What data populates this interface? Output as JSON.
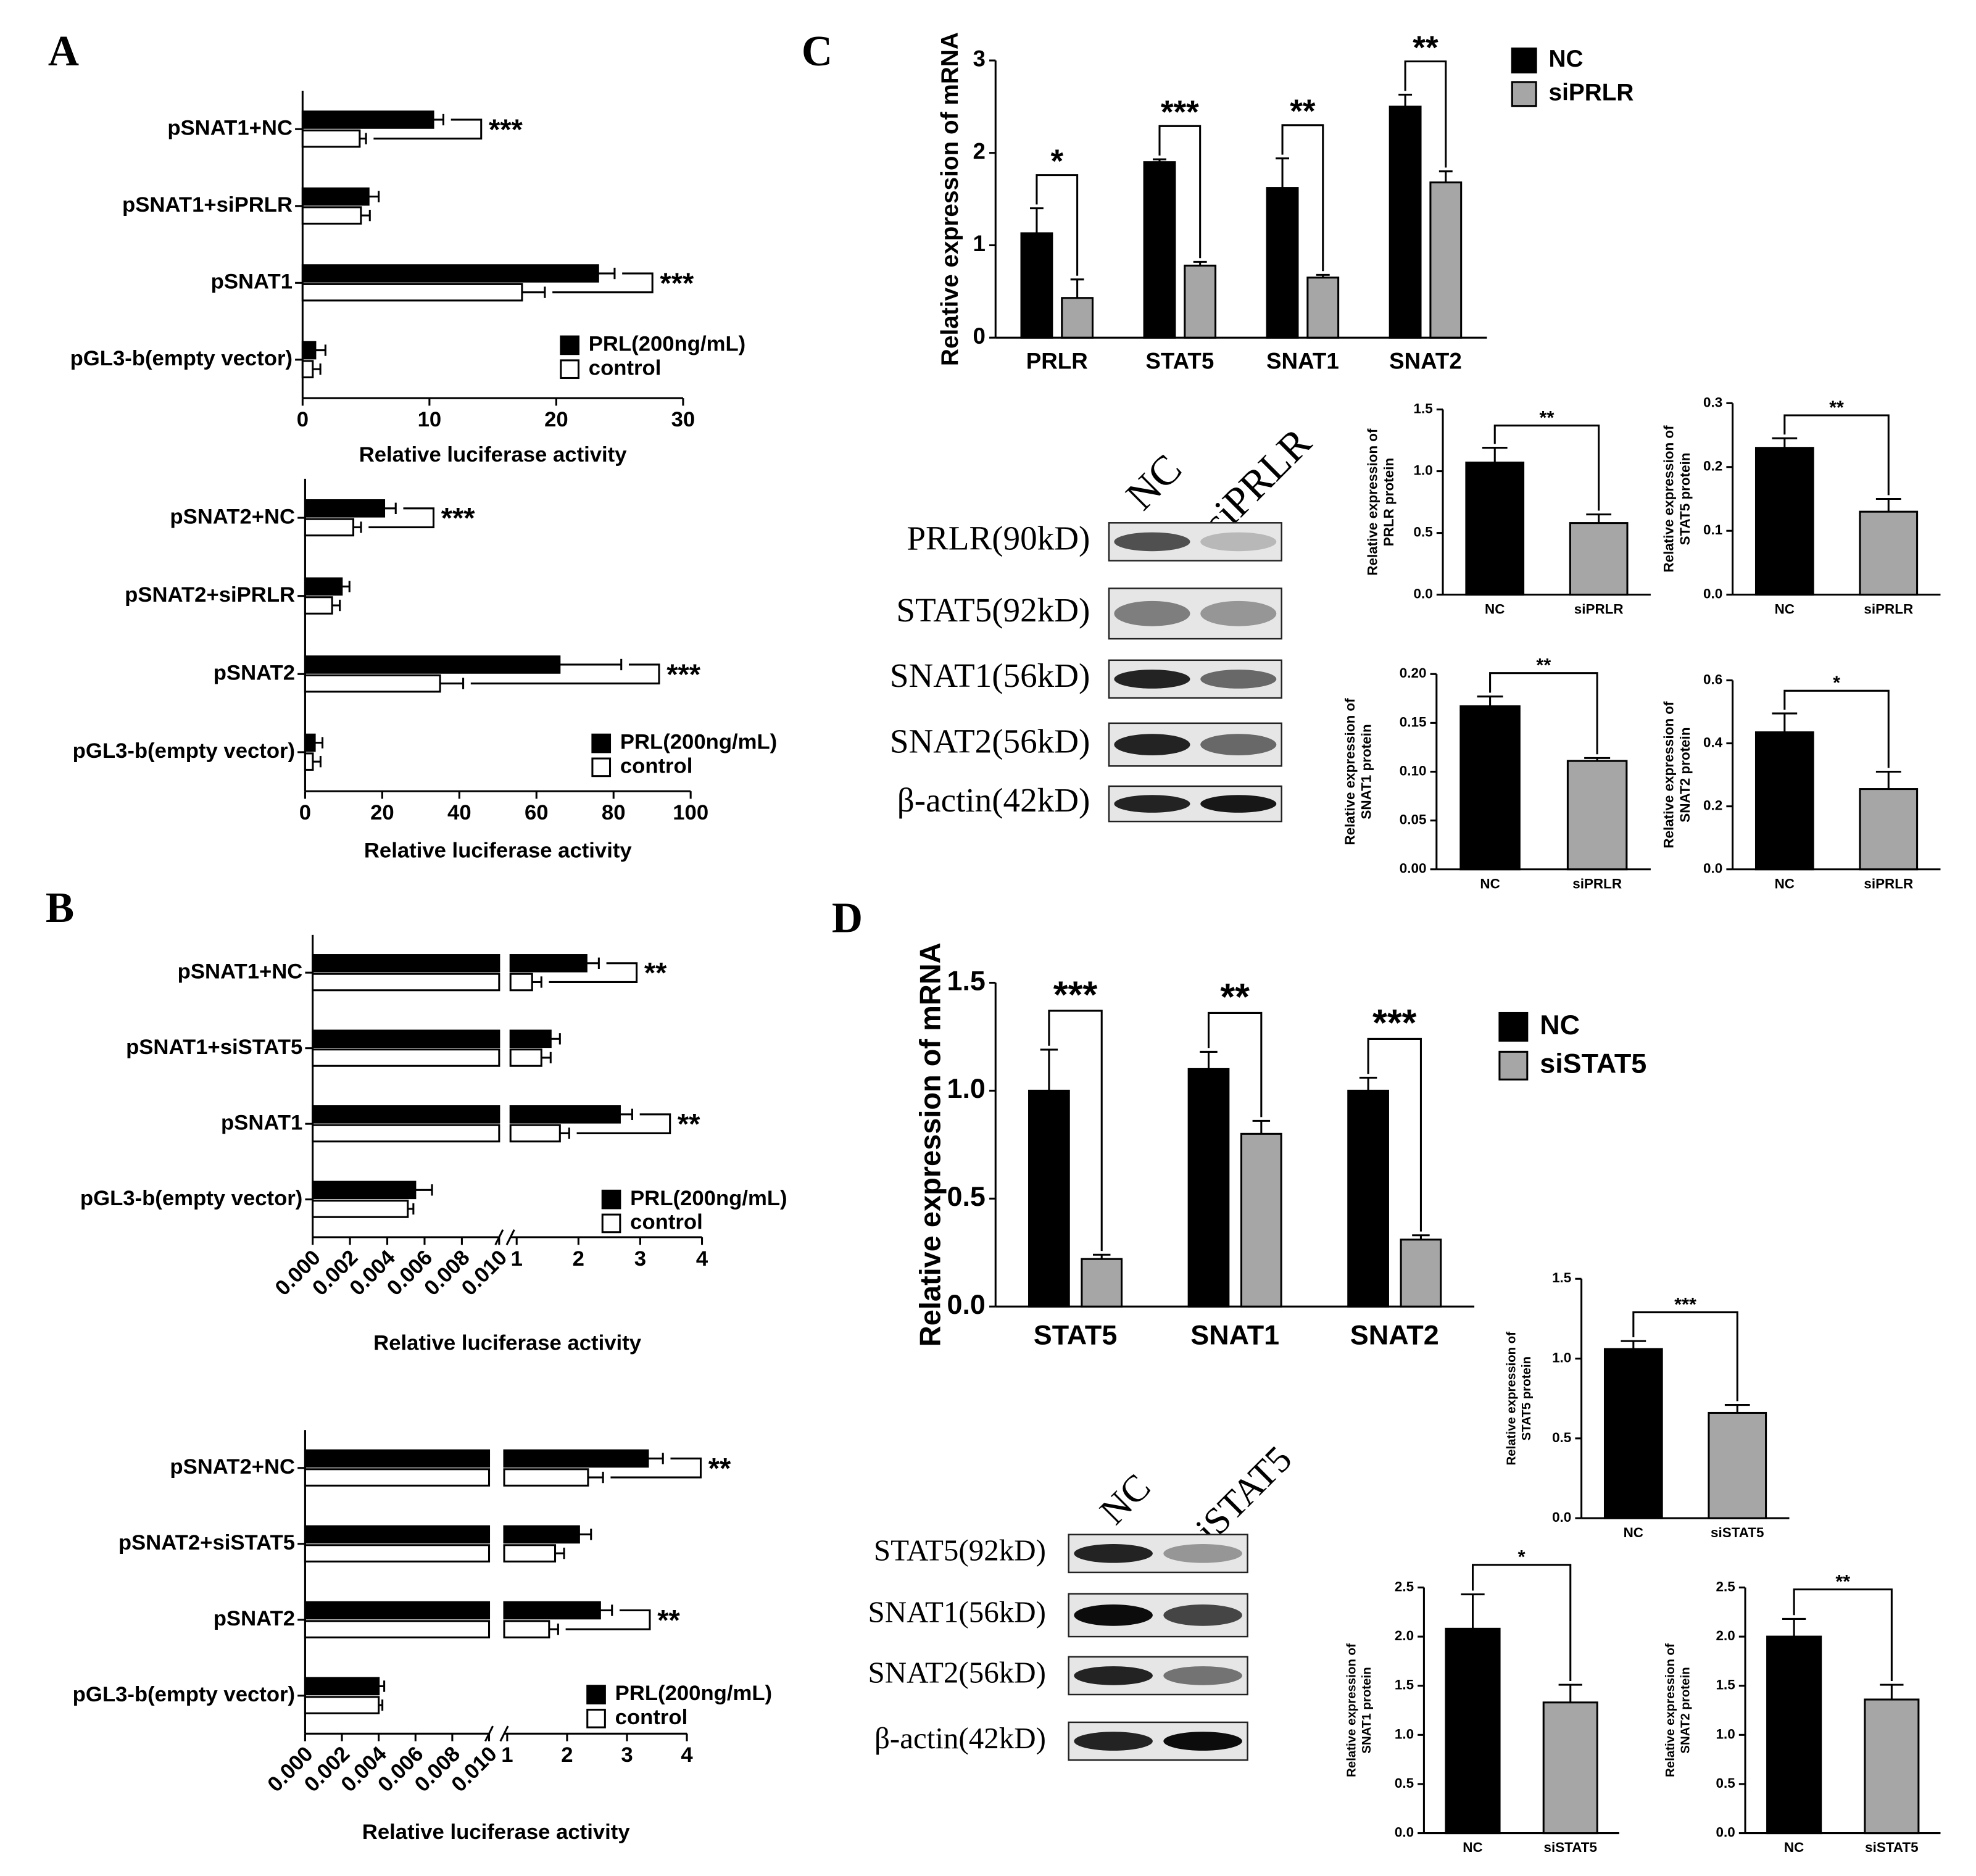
{
  "panels": [
    "A",
    "B",
    "C",
    "D"
  ],
  "chart_data": [
    {
      "type": "hbar",
      "xlabel": "Relative luciferase activity",
      "categories": [
        "pSNAT1+NC",
        "pSNAT1+siPRLR",
        "pSNAT1",
        "pGL3-b(empty vector)"
      ],
      "series": [
        {
          "name": "PRL(200ng/mL)",
          "color": "#000000",
          "values": [
            10.3,
            5.2,
            23.3,
            1.0
          ],
          "errors": [
            0.8,
            0.8,
            1.3,
            0.8
          ]
        },
        {
          "name": "control",
          "color": "#ffffff",
          "values": [
            4.5,
            4.6,
            17.3,
            0.8
          ],
          "errors": [
            0.5,
            0.7,
            1.8,
            0.6
          ]
        }
      ],
      "annotations": [
        "***",
        null,
        "***",
        null
      ],
      "xlim": [
        0,
        30
      ],
      "xticks": [
        0,
        10,
        20,
        30
      ],
      "legend": "lower right"
    },
    {
      "type": "hbar",
      "xlabel": "Relative luciferase activity",
      "categories": [
        "pSNAT2+NC",
        "pSNAT2+siPRLR",
        "pSNAT2",
        "pGL3-b(empty vector)"
      ],
      "series": [
        {
          "name": "PRL(200ng/mL)",
          "color": "#000000",
          "values": [
            20.5,
            9.5,
            66,
            2.5
          ],
          "errors": [
            3,
            2,
            16,
            2
          ]
        },
        {
          "name": "control",
          "color": "#ffffff",
          "values": [
            12.5,
            7,
            35,
            2
          ],
          "errors": [
            2,
            2,
            6,
            2
          ]
        }
      ],
      "annotations": [
        "***",
        null,
        "***",
        null
      ],
      "xlim": [
        0,
        100
      ],
      "xticks": [
        0,
        20,
        40,
        60,
        80,
        100
      ],
      "legend": "lower right"
    },
    {
      "type": "hbar",
      "xlabel": "Relative luciferase activity",
      "categories": [
        "pSNAT1+NC",
        "pSNAT1+siSTAT5",
        "pSNAT1",
        "pGL3-b(empty vector)"
      ],
      "series": [
        {
          "name": "PRL(200ng/mL)",
          "color": "#000000",
          "values": [
            2.13,
            1.55,
            2.67,
            0.0055
          ],
          "errors": [
            0.2,
            0.15,
            0.2,
            0.0009
          ]
        },
        {
          "name": "control",
          "color": "#ffffff",
          "values": [
            1.25,
            1.4,
            1.7,
            0.0051
          ],
          "errors": [
            0.15,
            0.15,
            0.15,
            0.0003
          ]
        }
      ],
      "annotations": [
        "**",
        null,
        "**",
        null
      ],
      "xlim": [
        0,
        4
      ],
      "xbreak": [
        0.01,
        0.9
      ],
      "xticks": [
        {
          "value": 0,
          "label": "0.000"
        },
        {
          "value": 0.002,
          "label": "0.002"
        },
        {
          "value": 0.004,
          "label": "0.004"
        },
        {
          "value": 0.006,
          "label": "0.006"
        },
        {
          "value": 0.008,
          "label": "0.008"
        },
        {
          "value": 0.01,
          "label": "0.010"
        },
        1,
        2,
        3,
        4
      ],
      "legend": "lower right"
    },
    {
      "type": "hbar",
      "xlabel": "Relative luciferase activity",
      "categories": [
        "pSNAT2+NC",
        "pSNAT2+siSTAT5",
        "pSNAT2",
        "pGL3-b(empty vector)"
      ],
      "series": [
        {
          "name": "PRL(200ng/mL)",
          "color": "#000000",
          "values": [
            3.35,
            2.2,
            2.55,
            0.004
          ],
          "errors": [
            0.25,
            0.2,
            0.2,
            0.0003
          ]
        },
        {
          "name": "control",
          "color": "#ffffff",
          "values": [
            2.35,
            1.8,
            1.7,
            0.004
          ],
          "errors": [
            0.25,
            0.15,
            0.15,
            0.0002
          ]
        }
      ],
      "annotations": [
        "**",
        null,
        "**",
        null
      ],
      "xlim": [
        0,
        4
      ],
      "xbreak": [
        0.01,
        0.95
      ],
      "xticks": [
        {
          "value": 0,
          "label": "0.000"
        },
        {
          "value": 0.002,
          "label": "0.002"
        },
        {
          "value": 0.004,
          "label": "0.004"
        },
        {
          "value": 0.006,
          "label": "0.006"
        },
        {
          "value": 0.008,
          "label": "0.008"
        },
        {
          "value": 0.01,
          "label": "0.010"
        },
        1,
        2,
        3,
        4
      ],
      "legend": "lower right"
    },
    {
      "type": "bar",
      "ylabel": [
        "Relative expression of mRNA"
      ],
      "categories": [
        "PRLR",
        "STAT5",
        "SNAT1",
        "SNAT2"
      ],
      "series": [
        {
          "name": "NC",
          "color": "#000000",
          "values": [
            1.13,
            1.9,
            1.62,
            2.5
          ],
          "errors": [
            0.27,
            0.03,
            0.32,
            0.13
          ]
        },
        {
          "name": "siPRLR",
          "color": "#a6a6a6",
          "values": [
            0.43,
            0.78,
            0.65,
            1.68
          ],
          "errors": [
            0.2,
            0.04,
            0.03,
            0.12
          ]
        }
      ],
      "annotations": [
        "*",
        "***",
        "**",
        "**"
      ],
      "ylim": [
        0,
        3
      ],
      "yticks": [
        0,
        1,
        2,
        3
      ],
      "legend": "upper right"
    },
    {
      "type": "bar",
      "ylabel": [
        "Relative expression of",
        "PRLR protein"
      ],
      "categories": [
        "NC",
        "siPRLR"
      ],
      "values": [
        1.07,
        0.58
      ],
      "errors": [
        0.12,
        0.07
      ],
      "colors": [
        "#000000",
        "#a6a6a6"
      ],
      "annotation": "**",
      "ylim": [
        0,
        1.5
      ],
      "yticks": [
        {
          "value": 0,
          "label": "0.0"
        },
        0.5,
        {
          "value": 1,
          "label": "1.0"
        },
        1.5
      ]
    },
    {
      "type": "bar",
      "ylabel": [
        "Relative expression of",
        "STAT5 protein"
      ],
      "categories": [
        "NC",
        "siPRLR"
      ],
      "values": [
        0.23,
        0.13
      ],
      "errors": [
        0.015,
        0.02
      ],
      "colors": [
        "#000000",
        "#a6a6a6"
      ],
      "annotation": "**",
      "ylim": [
        0,
        0.3
      ],
      "yticks": [
        {
          "value": 0,
          "label": "0.0"
        },
        0.1,
        0.2,
        0.3
      ]
    },
    {
      "type": "bar",
      "ylabel": [
        "Relative expression of",
        "SNAT1 protein"
      ],
      "categories": [
        "NC",
        "siPRLR"
      ],
      "values": [
        0.167,
        0.111
      ],
      "errors": [
        0.01,
        0.003
      ],
      "colors": [
        "#000000",
        "#a6a6a6"
      ],
      "annotation": "**",
      "ylim": [
        0,
        0.2
      ],
      "yticks": [
        {
          "value": 0,
          "label": "0.00"
        },
        0.05,
        {
          "value": 0.1,
          "label": "0.10"
        },
        0.15,
        {
          "value": 0.2,
          "label": "0.20"
        }
      ]
    },
    {
      "type": "bar",
      "ylabel": [
        "Relative expression of",
        "SNAT2 protein"
      ],
      "categories": [
        "NC",
        "siPRLR"
      ],
      "values": [
        0.435,
        0.255
      ],
      "errors": [
        0.06,
        0.055
      ],
      "colors": [
        "#000000",
        "#a6a6a6"
      ],
      "annotation": "*",
      "ylim": [
        0,
        0.6
      ],
      "yticks": [
        {
          "value": 0,
          "label": "0.0"
        },
        0.2,
        0.4,
        0.6
      ]
    },
    {
      "type": "bar",
      "ylabel": [
        "Relative expression of mRNA"
      ],
      "categories": [
        "STAT5",
        "SNAT1",
        "SNAT2"
      ],
      "series": [
        {
          "name": "NC",
          "color": "#000000",
          "values": [
            1.0,
            1.1,
            1.0
          ],
          "errors": [
            0.19,
            0.08,
            0.06
          ]
        },
        {
          "name": "siSTAT5",
          "color": "#a6a6a6",
          "values": [
            0.22,
            0.8,
            0.31
          ],
          "errors": [
            0.02,
            0.06,
            0.02
          ]
        }
      ],
      "annotations": [
        "***",
        "**",
        "***"
      ],
      "ylim": [
        0,
        1.5
      ],
      "yticks": [
        {
          "value": 0,
          "label": "0.0"
        },
        0.5,
        {
          "value": 1,
          "label": "1.0"
        },
        1.5
      ],
      "legend": "upper right"
    },
    {
      "type": "bar",
      "ylabel": [
        "Relative expression of",
        "STAT5 protein"
      ],
      "categories": [
        "NC",
        "siSTAT5"
      ],
      "values": [
        1.06,
        0.66
      ],
      "errors": [
        0.05,
        0.05
      ],
      "colors": [
        "#000000",
        "#a6a6a6"
      ],
      "annotation": "***",
      "ylim": [
        0,
        1.5
      ],
      "yticks": [
        {
          "value": 0,
          "label": "0.0"
        },
        0.5,
        {
          "value": 1,
          "label": "1.0"
        },
        1.5
      ]
    },
    {
      "type": "bar",
      "ylabel": [
        "Relative expression of",
        "SNAT1 protein"
      ],
      "categories": [
        "NC",
        "siSTAT5"
      ],
      "values": [
        2.08,
        1.33
      ],
      "errors": [
        0.35,
        0.18
      ],
      "colors": [
        "#000000",
        "#a6a6a6"
      ],
      "annotation": "*",
      "ylim": [
        0,
        2.5
      ],
      "yticks": [
        {
          "value": 0,
          "label": "0.0"
        },
        0.5,
        {
          "value": 1,
          "label": "1.0"
        },
        1.5,
        {
          "value": 2,
          "label": "2.0"
        },
        2.5
      ]
    },
    {
      "type": "bar",
      "ylabel": [
        "Relative expression of",
        "SNAT2 protein"
      ],
      "categories": [
        "NC",
        "siSTAT5"
      ],
      "values": [
        2.0,
        1.36
      ],
      "errors": [
        0.18,
        0.15
      ],
      "colors": [
        "#000000",
        "#a6a6a6"
      ],
      "annotation": "**",
      "ylim": [
        0,
        2.5
      ],
      "yticks": [
        {
          "value": 0,
          "label": "0.0"
        },
        0.5,
        {
          "value": 1,
          "label": "1.0"
        },
        1.5,
        {
          "value": 2,
          "label": "2.0"
        },
        2.5
      ]
    }
  ],
  "blots": [
    {
      "lanes": [
        "NC",
        "siPRLR"
      ],
      "rows": [
        "PRLR(90kD)",
        "STAT5(92kD)",
        "SNAT1(56kD)",
        "SNAT2(56kD)",
        "β-actin(42kD)"
      ]
    },
    {
      "lanes": [
        "NC",
        "siSTAT5"
      ],
      "rows": [
        "STAT5(92kD)",
        "SNAT1(56kD)",
        "SNAT2(56kD)",
        "β-actin(42kD)"
      ]
    }
  ]
}
